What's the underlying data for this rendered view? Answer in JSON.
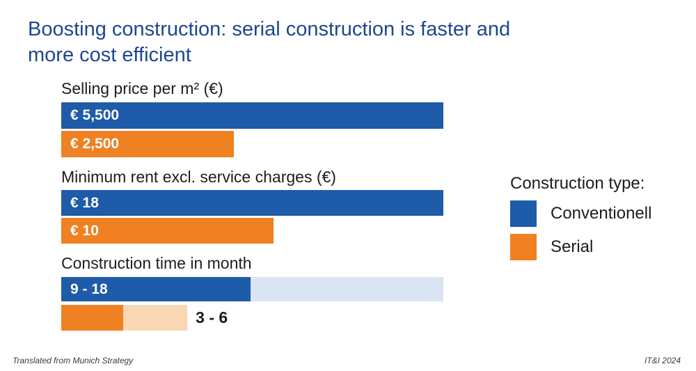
{
  "title": {
    "lines": [
      "Boosting construction: serial construction is faster and",
      "more cost efficient"
    ],
    "color": "#1e4791"
  },
  "legend": {
    "heading": "Construction type:",
    "items": [
      {
        "label": "Conventionell",
        "color": "#1e5ba8"
      },
      {
        "label": "Serial",
        "color": "#ef8123"
      }
    ]
  },
  "footer": {
    "left": "Translated from Munich Strategy",
    "right": "IT&I 2024"
  },
  "colors": {
    "conventional": "#1e5ba8",
    "conventional_light": "#d9e5f4",
    "serial": "#ef8123",
    "serial_light": "#f9d7b4",
    "title_text": "#1e4791",
    "body_text": "#1d1d1b"
  },
  "chart_data": {
    "type": "bar",
    "orientation": "horizontal",
    "series_names": [
      "Conventionell",
      "Serial"
    ],
    "legend_position": "right",
    "grid": false,
    "groups": [
      {
        "label": "Selling price per m² (€)",
        "bars": [
          {
            "series": "Conventionell",
            "value": 5500,
            "display": "€ 5,500",
            "width_pct": 100
          },
          {
            "series": "Serial",
            "value": 2500,
            "display": "€ 2,500",
            "width_pct": 45.2
          }
        ]
      },
      {
        "label": "Minimum rent excl. service charges (€)",
        "bars": [
          {
            "series": "Conventionell",
            "value": 18,
            "display": "€ 18",
            "width_pct": 100
          },
          {
            "series": "Serial",
            "value": 10,
            "display": "€ 10",
            "width_pct": 55.6
          }
        ]
      },
      {
        "label": "Construction time in month",
        "bars": [
          {
            "series": "Conventionell",
            "value_min": 9,
            "value_max": 18,
            "display": "9 - 18",
            "solid_pct": 49.5,
            "light_pct": 50.5
          },
          {
            "series": "Serial",
            "value_min": 3,
            "value_max": 6,
            "display": "3 - 6",
            "solid_pct": 16.2,
            "light_pct": 16.8
          }
        ]
      }
    ]
  }
}
